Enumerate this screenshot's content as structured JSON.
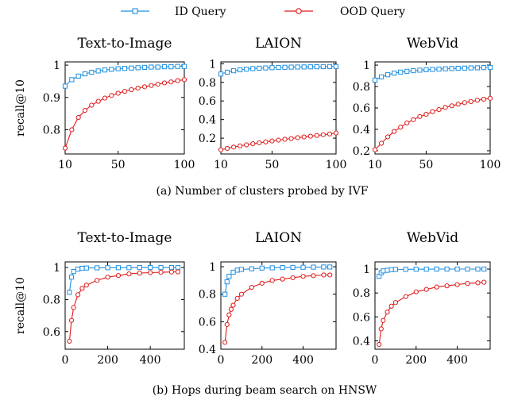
{
  "legend": [
    {
      "label": "ID Query",
      "color": "#1f8fe0",
      "marker": "square"
    },
    {
      "label": "OOD Query",
      "color": "#e01b1b",
      "marker": "circle"
    }
  ],
  "captions": {
    "a": "(a) Number of clusters probed by IVF",
    "b": "(b) Hops during beam search on HNSW"
  },
  "chart_data": [
    {
      "type": "line",
      "title": "Text-to-Image",
      "ylabel": "recall@10",
      "xlim": [
        10,
        100
      ],
      "ylim": [
        0.725,
        1.01
      ],
      "xticks": [
        10,
        50,
        100
      ],
      "yticks": [
        0.8,
        0.9,
        1
      ],
      "yticklabels": [
        "0.8",
        "0.9",
        "1"
      ],
      "series": [
        {
          "name": "ID Query",
          "x": [
            10,
            15,
            20,
            25,
            30,
            35,
            40,
            45,
            50,
            55,
            60,
            65,
            70,
            75,
            80,
            85,
            90,
            95,
            100
          ],
          "y": [
            0.935,
            0.955,
            0.966,
            0.973,
            0.978,
            0.982,
            0.985,
            0.987,
            0.989,
            0.99,
            0.991,
            0.992,
            0.993,
            0.994,
            0.994,
            0.995,
            0.995,
            0.996,
            0.996
          ]
        },
        {
          "name": "OOD Query",
          "x": [
            10,
            15,
            20,
            25,
            30,
            35,
            40,
            45,
            50,
            55,
            60,
            65,
            70,
            75,
            80,
            85,
            90,
            95,
            100
          ],
          "y": [
            0.743,
            0.8,
            0.838,
            0.86,
            0.876,
            0.888,
            0.898,
            0.906,
            0.913,
            0.919,
            0.924,
            0.929,
            0.933,
            0.937,
            0.941,
            0.945,
            0.948,
            0.952,
            0.955
          ]
        }
      ]
    },
    {
      "type": "line",
      "title": "LAION",
      "xlim": [
        10,
        100
      ],
      "ylim": [
        0.03,
        1.02
      ],
      "xticks": [
        10,
        50,
        100
      ],
      "yticks": [
        0.2,
        0.4,
        0.6,
        0.8,
        1
      ],
      "yticklabels": [
        "0.2",
        "0.4",
        "0.6",
        "0.8",
        "1"
      ],
      "series": [
        {
          "name": "ID Query",
          "x": [
            10,
            15,
            20,
            25,
            30,
            35,
            40,
            45,
            50,
            55,
            60,
            65,
            70,
            75,
            80,
            85,
            90,
            95,
            100
          ],
          "y": [
            0.89,
            0.91,
            0.925,
            0.935,
            0.942,
            0.948,
            0.952,
            0.955,
            0.958,
            0.96,
            0.962,
            0.964,
            0.965,
            0.966,
            0.967,
            0.968,
            0.969,
            0.97,
            0.971
          ]
        },
        {
          "name": "OOD Query",
          "x": [
            10,
            15,
            20,
            25,
            30,
            35,
            40,
            45,
            50,
            55,
            60,
            65,
            70,
            75,
            80,
            85,
            90,
            95,
            100
          ],
          "y": [
            0.075,
            0.09,
            0.104,
            0.117,
            0.128,
            0.14,
            0.15,
            0.16,
            0.17,
            0.179,
            0.188,
            0.196,
            0.205,
            0.213,
            0.221,
            0.229,
            0.237,
            0.245,
            0.255
          ]
        }
      ]
    },
    {
      "type": "line",
      "title": "WebVid",
      "xlim": [
        10,
        100
      ],
      "ylim": [
        0.17,
        1.03
      ],
      "xticks": [
        10,
        50,
        100
      ],
      "yticks": [
        0.2,
        0.4,
        0.6,
        0.8,
        1
      ],
      "yticklabels": [
        "0.2",
        "0.4",
        "0.6",
        "0.8",
        "1"
      ],
      "series": [
        {
          "name": "ID Query",
          "x": [
            10,
            15,
            20,
            25,
            30,
            35,
            40,
            45,
            50,
            55,
            60,
            65,
            70,
            75,
            80,
            85,
            90,
            95,
            100
          ],
          "y": [
            0.86,
            0.89,
            0.91,
            0.925,
            0.935,
            0.942,
            0.948,
            0.953,
            0.957,
            0.96,
            0.963,
            0.966,
            0.968,
            0.97,
            0.972,
            0.974,
            0.975,
            0.977,
            0.978
          ]
        },
        {
          "name": "OOD Query",
          "x": [
            10,
            15,
            20,
            25,
            30,
            35,
            40,
            45,
            50,
            55,
            60,
            65,
            70,
            75,
            80,
            85,
            90,
            95,
            100
          ],
          "y": [
            0.21,
            0.27,
            0.33,
            0.38,
            0.42,
            0.46,
            0.49,
            0.52,
            0.54,
            0.565,
            0.585,
            0.605,
            0.62,
            0.635,
            0.65,
            0.66,
            0.672,
            0.682,
            0.69
          ]
        }
      ]
    },
    {
      "type": "line",
      "title": "Text-to-Image",
      "ylabel": "recall@10",
      "xlim": [
        0,
        560
      ],
      "ylim": [
        0.49,
        1.035
      ],
      "xticks": [
        0,
        200,
        400
      ],
      "yticks": [
        0.6,
        0.8,
        1
      ],
      "yticklabels": [
        "0.6",
        "0.8",
        "1"
      ],
      "series": [
        {
          "name": "ID Query",
          "x": [
            20,
            30,
            40,
            60,
            80,
            100,
            150,
            200,
            250,
            300,
            350,
            400,
            450,
            500,
            530
          ],
          "y": [
            0.845,
            0.94,
            0.975,
            0.99,
            0.995,
            0.997,
            0.998,
            0.999,
            0.999,
            0.999,
            1.0,
            1.0,
            1.0,
            1.0,
            1.0
          ]
        },
        {
          "name": "OOD Query",
          "x": [
            20,
            30,
            40,
            60,
            80,
            100,
            150,
            200,
            250,
            300,
            350,
            400,
            450,
            500,
            530
          ],
          "y": [
            0.54,
            0.67,
            0.75,
            0.83,
            0.87,
            0.89,
            0.92,
            0.94,
            0.95,
            0.96,
            0.965,
            0.968,
            0.97,
            0.972,
            0.973
          ]
        }
      ]
    },
    {
      "type": "line",
      "title": "LAION",
      "xlim": [
        0,
        560
      ],
      "ylim": [
        0.4,
        1.035
      ],
      "xticks": [
        0,
        200,
        400
      ],
      "yticks": [
        0.4,
        0.6,
        0.8,
        1
      ],
      "yticklabels": [
        "0.4",
        "0.6",
        "0.8",
        "1"
      ],
      "series": [
        {
          "name": "ID Query",
          "x": [
            20,
            30,
            40,
            60,
            80,
            100,
            150,
            200,
            250,
            300,
            350,
            400,
            450,
            500,
            530
          ],
          "y": [
            0.8,
            0.89,
            0.93,
            0.96,
            0.975,
            0.98,
            0.985,
            0.99,
            0.992,
            0.994,
            0.995,
            0.996,
            0.997,
            0.998,
            0.998
          ]
        },
        {
          "name": "OOD Query",
          "x": [
            20,
            30,
            40,
            50,
            60,
            80,
            100,
            150,
            200,
            250,
            300,
            350,
            400,
            450,
            500,
            530
          ],
          "y": [
            0.45,
            0.58,
            0.65,
            0.69,
            0.72,
            0.77,
            0.8,
            0.85,
            0.88,
            0.9,
            0.91,
            0.92,
            0.93,
            0.935,
            0.94,
            0.94
          ]
        }
      ]
    },
    {
      "type": "line",
      "title": "WebVid",
      "xlim": [
        0,
        560
      ],
      "ylim": [
        0.33,
        1.06
      ],
      "xticks": [
        0,
        200,
        400
      ],
      "yticks": [
        0.4,
        0.6,
        0.8,
        1
      ],
      "yticklabels": [
        "0.4",
        "0.6",
        "0.8",
        "1"
      ],
      "series": [
        {
          "name": "ID Query",
          "x": [
            20,
            30,
            40,
            60,
            80,
            100,
            150,
            200,
            250,
            300,
            350,
            400,
            450,
            500,
            530
          ],
          "y": [
            0.94,
            0.97,
            0.985,
            0.99,
            0.995,
            0.997,
            0.998,
            0.999,
            0.999,
            1.0,
            1.0,
            1.0,
            1.0,
            1.0,
            1.0
          ]
        },
        {
          "name": "OOD Query",
          "x": [
            20,
            30,
            40,
            60,
            80,
            100,
            150,
            200,
            250,
            300,
            350,
            400,
            450,
            500,
            530
          ],
          "y": [
            0.37,
            0.5,
            0.57,
            0.64,
            0.69,
            0.72,
            0.77,
            0.81,
            0.83,
            0.85,
            0.86,
            0.87,
            0.88,
            0.885,
            0.89
          ]
        }
      ]
    }
  ]
}
